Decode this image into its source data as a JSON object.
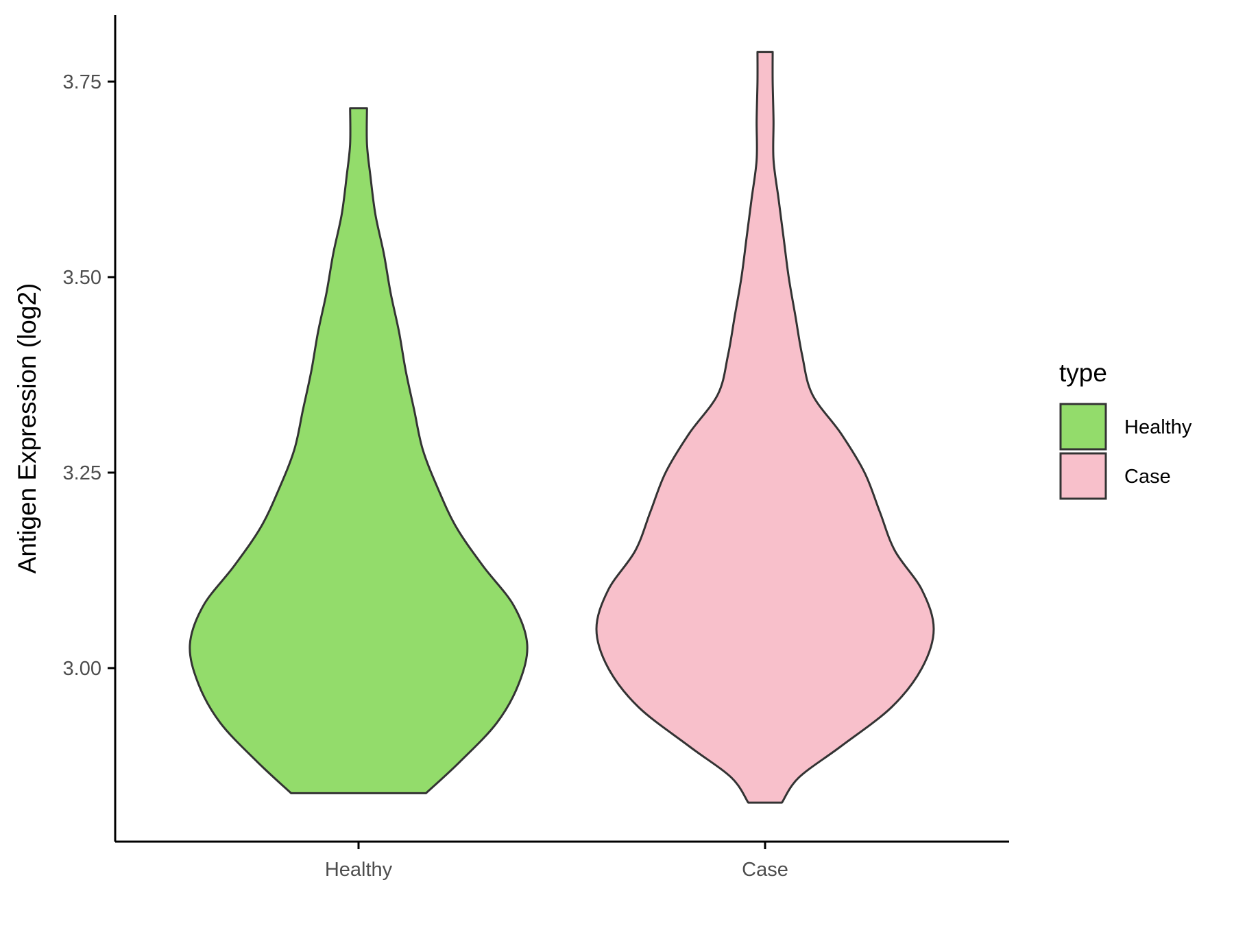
{
  "chart_data": {
    "type": "violin",
    "xlabel": "",
    "ylabel": "Antigen Expression (log2)",
    "categories": [
      "Healthy",
      "Case"
    ],
    "ylim": [
      2.78,
      3.84
    ],
    "yticks": [
      3.0,
      3.25,
      3.5,
      3.75
    ],
    "ytick_labels": [
      "3.00",
      "3.25",
      "3.50",
      "3.75"
    ],
    "grid": false,
    "legend": {
      "title": "type",
      "position": "right",
      "entries": [
        {
          "label": "Healthy",
          "color": "#93DC6B"
        },
        {
          "label": "Case",
          "color": "#F8C0CB"
        }
      ]
    },
    "series": [
      {
        "name": "Healthy",
        "color": "#93DC6B",
        "min": 2.84,
        "max": 3.716,
        "density_profile": [
          [
            2.84,
            0.4
          ],
          [
            2.88,
            0.6
          ],
          [
            2.93,
            0.82
          ],
          [
            2.98,
            0.95
          ],
          [
            3.03,
            1.0
          ],
          [
            3.08,
            0.92
          ],
          [
            3.13,
            0.74
          ],
          [
            3.18,
            0.58
          ],
          [
            3.23,
            0.47
          ],
          [
            3.28,
            0.38
          ],
          [
            3.33,
            0.33
          ],
          [
            3.38,
            0.28
          ],
          [
            3.43,
            0.24
          ],
          [
            3.48,
            0.19
          ],
          [
            3.53,
            0.15
          ],
          [
            3.58,
            0.1
          ],
          [
            3.63,
            0.07
          ],
          [
            3.67,
            0.05
          ],
          [
            3.716,
            0.05
          ]
        ]
      },
      {
        "name": "Case",
        "color": "#F8C0CB",
        "min": 2.828,
        "max": 3.788,
        "density_profile": [
          [
            2.828,
            0.1
          ],
          [
            2.86,
            0.2
          ],
          [
            2.9,
            0.45
          ],
          [
            2.95,
            0.75
          ],
          [
            3.0,
            0.93
          ],
          [
            3.05,
            1.0
          ],
          [
            3.1,
            0.93
          ],
          [
            3.15,
            0.77
          ],
          [
            3.2,
            0.68
          ],
          [
            3.25,
            0.59
          ],
          [
            3.3,
            0.45
          ],
          [
            3.35,
            0.28
          ],
          [
            3.4,
            0.22
          ],
          [
            3.45,
            0.18
          ],
          [
            3.5,
            0.14
          ],
          [
            3.55,
            0.11
          ],
          [
            3.6,
            0.08
          ],
          [
            3.65,
            0.05
          ],
          [
            3.7,
            0.05
          ],
          [
            3.75,
            0.045
          ],
          [
            3.788,
            0.045
          ]
        ]
      }
    ]
  }
}
